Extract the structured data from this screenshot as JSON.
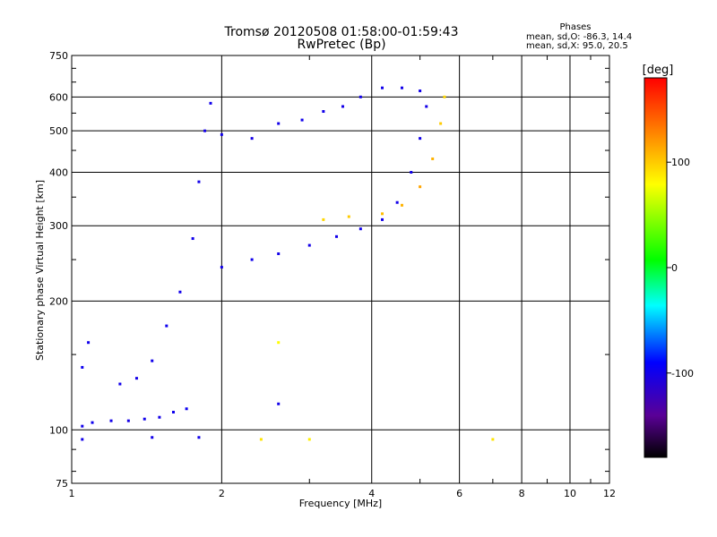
{
  "chart_data": {
    "type": "scatter",
    "title": "Tromsø 20120508 01:58:00-01:59:43",
    "subtitle": "RwPretec (Bp)",
    "annotation": {
      "heading": "Phases",
      "line1": "mean, sd,O: -86.3, 14.4",
      "line2": "mean, sd,X:  95.0, 20.5"
    },
    "xlabel": "Frequency [MHz]",
    "ylabel": "Stationary phase Virtual Height [km]",
    "xscale": "log",
    "yscale": "log",
    "xlim": [
      1,
      12
    ],
    "ylim": [
      75,
      750
    ],
    "xticks": [
      1,
      2,
      4,
      6,
      8,
      10,
      12
    ],
    "xtick_labels": [
      "1",
      "2",
      "4",
      "6",
      "8",
      "10",
      "12"
    ],
    "yticks": [
      75,
      100,
      200,
      300,
      400,
      500,
      600,
      750
    ],
    "ytick_labels": [
      "75",
      "100",
      "200",
      "300",
      "400",
      "500",
      "600",
      "750"
    ],
    "x_gridlines": [
      2,
      4,
      6,
      8,
      10
    ],
    "y_gridlines": [
      100,
      200,
      300,
      400,
      500,
      600
    ],
    "colorbar": {
      "label": "[deg]",
      "range": [
        -180,
        180
      ],
      "ticks": [
        100,
        0,
        -100
      ],
      "tick_labels": [
        "100",
        "0",
        "-100"
      ]
    },
    "series": [
      {
        "values": [
          {
            "f": 1.05,
            "h": 102,
            "p": -100
          },
          {
            "f": 1.1,
            "h": 104,
            "p": -98
          },
          {
            "f": 1.2,
            "h": 105,
            "p": -100
          },
          {
            "f": 1.3,
            "h": 105,
            "p": -102
          },
          {
            "f": 1.4,
            "h": 106,
            "p": -99
          },
          {
            "f": 1.5,
            "h": 107,
            "p": -101
          },
          {
            "f": 1.6,
            "h": 110,
            "p": -98
          },
          {
            "f": 1.7,
            "h": 112,
            "p": -97
          },
          {
            "f": 1.05,
            "h": 95,
            "p": -100
          },
          {
            "f": 1.45,
            "h": 96,
            "p": -100
          },
          {
            "f": 1.8,
            "h": 96,
            "p": -99
          },
          {
            "f": 1.05,
            "h": 140,
            "p": -97
          },
          {
            "f": 1.08,
            "h": 160,
            "p": -99
          },
          {
            "f": 1.25,
            "h": 128,
            "p": -100
          },
          {
            "f": 1.35,
            "h": 132,
            "p": -101
          },
          {
            "f": 1.45,
            "h": 145,
            "p": -99
          },
          {
            "f": 1.55,
            "h": 175,
            "p": -98
          },
          {
            "f": 1.65,
            "h": 210,
            "p": -100
          },
          {
            "f": 1.75,
            "h": 280,
            "p": -99
          },
          {
            "f": 1.8,
            "h": 380,
            "p": -100
          },
          {
            "f": 1.85,
            "h": 500,
            "p": -101
          },
          {
            "f": 1.9,
            "h": 580,
            "p": -99
          },
          {
            "f": 2.0,
            "h": 490,
            "p": -100
          },
          {
            "f": 2.3,
            "h": 480,
            "p": -102
          },
          {
            "f": 2.6,
            "h": 520,
            "p": -100
          },
          {
            "f": 2.9,
            "h": 530,
            "p": -99
          },
          {
            "f": 3.2,
            "h": 555,
            "p": -100
          },
          {
            "f": 3.5,
            "h": 570,
            "p": -101
          },
          {
            "f": 3.8,
            "h": 600,
            "p": -100
          },
          {
            "f": 4.2,
            "h": 630,
            "p": -99
          },
          {
            "f": 4.6,
            "h": 630,
            "p": -100
          },
          {
            "f": 5.0,
            "h": 620,
            "p": -100
          },
          {
            "f": 2.0,
            "h": 240,
            "p": -100
          },
          {
            "f": 2.3,
            "h": 250,
            "p": -99
          },
          {
            "f": 2.6,
            "h": 258,
            "p": -100
          },
          {
            "f": 3.0,
            "h": 270,
            "p": -101
          },
          {
            "f": 3.4,
            "h": 283,
            "p": -100
          },
          {
            "f": 3.8,
            "h": 295,
            "p": -99
          },
          {
            "f": 4.2,
            "h": 310,
            "p": -100
          },
          {
            "f": 4.5,
            "h": 340,
            "p": -100
          },
          {
            "f": 4.8,
            "h": 400,
            "p": -99
          },
          {
            "f": 5.0,
            "h": 480,
            "p": -100
          },
          {
            "f": 5.15,
            "h": 570,
            "p": -101
          },
          {
            "f": 3.2,
            "h": 310,
            "p": 95
          },
          {
            "f": 3.6,
            "h": 315,
            "p": 100
          },
          {
            "f": 4.2,
            "h": 320,
            "p": 105
          },
          {
            "f": 4.6,
            "h": 335,
            "p": 110
          },
          {
            "f": 5.0,
            "h": 370,
            "p": 115
          },
          {
            "f": 5.3,
            "h": 430,
            "p": 110
          },
          {
            "f": 5.5,
            "h": 520,
            "p": 100
          },
          {
            "f": 5.6,
            "h": 600,
            "p": 95
          },
          {
            "f": 2.6,
            "h": 160,
            "p": 80
          },
          {
            "f": 2.4,
            "h": 95,
            "p": 90
          },
          {
            "f": 3.0,
            "h": 95,
            "p": 85
          },
          {
            "f": 2.6,
            "h": 115,
            "p": -100
          },
          {
            "f": 7.0,
            "h": 95,
            "p": 90
          }
        ]
      }
    ]
  }
}
